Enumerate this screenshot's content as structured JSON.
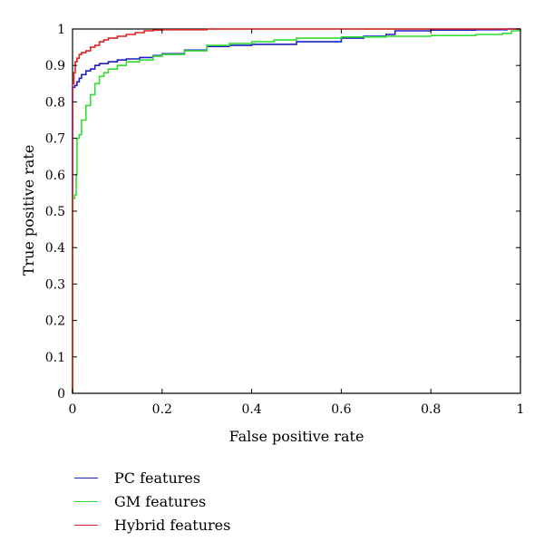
{
  "chart_data": {
    "type": "line",
    "title": "",
    "xlabel": "False positive rate",
    "ylabel": "True positive rate",
    "xlim": [
      0,
      1
    ],
    "ylim": [
      0,
      1
    ],
    "x_ticks": [
      "0",
      "0.2",
      "0.4",
      "0.6",
      "0.8",
      "1"
    ],
    "y_ticks": [
      "0",
      "0.1",
      "0.2",
      "0.3",
      "0.4",
      "0.5",
      "0.6",
      "0.7",
      "0.8",
      "0.9",
      "1"
    ],
    "grid": false,
    "legend_placement": "below-left",
    "series": [
      {
        "name": "PC features",
        "color": "#1f1fbf",
        "x": [
          0,
          0,
          0.005,
          0.01,
          0.015,
          0.02,
          0.03,
          0.04,
          0.05,
          0.06,
          0.08,
          0.1,
          0.12,
          0.15,
          0.18,
          0.2,
          0.25,
          0.3,
          0.35,
          0.4,
          0.5,
          0.6,
          0.65,
          0.7,
          0.72,
          0.8,
          0.9,
          0.97,
          1.0
        ],
        "y": [
          0,
          0.84,
          0.845,
          0.855,
          0.865,
          0.875,
          0.885,
          0.89,
          0.9,
          0.905,
          0.91,
          0.915,
          0.918,
          0.922,
          0.927,
          0.932,
          0.942,
          0.952,
          0.955,
          0.958,
          0.965,
          0.975,
          0.98,
          0.985,
          0.995,
          0.997,
          0.998,
          1.0,
          1.0
        ]
      },
      {
        "name": "GM features",
        "color": "#33dd33",
        "x": [
          0,
          0,
          0.005,
          0.008,
          0.01,
          0.015,
          0.02,
          0.03,
          0.04,
          0.05,
          0.06,
          0.07,
          0.08,
          0.1,
          0.12,
          0.15,
          0.18,
          0.2,
          0.25,
          0.3,
          0.35,
          0.4,
          0.45,
          0.5,
          0.6,
          0.7,
          0.8,
          0.9,
          0.96,
          0.98,
          1.0
        ],
        "y": [
          0,
          0.535,
          0.545,
          0.6,
          0.7,
          0.71,
          0.75,
          0.79,
          0.82,
          0.85,
          0.87,
          0.88,
          0.89,
          0.9,
          0.91,
          0.915,
          0.925,
          0.93,
          0.94,
          0.955,
          0.96,
          0.965,
          0.97,
          0.975,
          0.978,
          0.98,
          0.982,
          0.985,
          0.988,
          0.995,
          1.0
        ]
      },
      {
        "name": "Hybrid features",
        "color": "#dd2222",
        "x": [
          0,
          0,
          0.003,
          0.006,
          0.01,
          0.015,
          0.02,
          0.03,
          0.04,
          0.05,
          0.06,
          0.07,
          0.08,
          0.1,
          0.12,
          0.14,
          0.16,
          0.18,
          0.2,
          0.3,
          0.5,
          0.7,
          1.0
        ],
        "y": [
          0,
          0.85,
          0.88,
          0.91,
          0.92,
          0.93,
          0.935,
          0.94,
          0.95,
          0.955,
          0.965,
          0.97,
          0.975,
          0.98,
          0.985,
          0.99,
          0.995,
          0.997,
          0.998,
          1.0,
          1.0,
          1.0,
          1.0
        ]
      }
    ]
  }
}
